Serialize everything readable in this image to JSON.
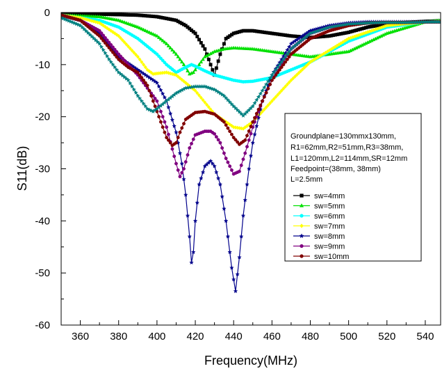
{
  "chart_data": {
    "type": "line",
    "title": "",
    "xlabel": "Frequency(MHz)",
    "ylabel": "S11(dB)",
    "xlim": [
      350,
      548
    ],
    "ylim": [
      -60,
      0
    ],
    "xticks": [
      360,
      380,
      400,
      420,
      440,
      460,
      480,
      500,
      520,
      540
    ],
    "yticks": [
      0,
      -10,
      -20,
      -30,
      -40,
      -50,
      -60
    ],
    "grid": false,
    "legend_position": "right",
    "info_box": [
      "Groundplane=130mmx130mm,",
      "R1=62mm,R2=51mm,R3=38mm,",
      "L1=120mm,L2=114mm,SR=12mm",
      "Feedpoint=(38mm, 38mm)",
      "L=2.5mm"
    ],
    "series": [
      {
        "name": "sw=4mm",
        "color": "#000000",
        "marker": "square",
        "x": [
          350,
          370,
          390,
          400,
          410,
          415,
          420,
          425,
          428,
          430,
          433,
          436,
          440,
          445,
          450,
          460,
          470,
          480,
          490,
          500,
          510,
          520,
          530,
          540,
          548
        ],
        "y": [
          -0.3,
          -0.3,
          -0.5,
          -0.8,
          -1.5,
          -2.5,
          -4,
          -7,
          -10,
          -12,
          -8,
          -5,
          -4,
          -3.5,
          -3.5,
          -4,
          -4.5,
          -4.8,
          -4.5,
          -3.8,
          -2.8,
          -2.2,
          -1.9,
          -1.7,
          -1.6
        ]
      },
      {
        "name": "sw=5mm",
        "color": "#00e000",
        "marker": "triangle-up",
        "x": [
          350,
          370,
          380,
          390,
          400,
          405,
          410,
          414,
          417,
          419,
          422,
          425,
          430,
          435,
          440,
          450,
          460,
          480,
          500,
          520,
          540,
          548
        ],
        "y": [
          -0.5,
          -0.8,
          -1.5,
          -2.8,
          -4.5,
          -6,
          -8,
          -10,
          -11.8,
          -11.5,
          -10,
          -8.5,
          -7.5,
          -7,
          -6.8,
          -7,
          -7.5,
          -8.5,
          -7.5,
          -4,
          -1.8,
          -1.5
        ]
      },
      {
        "name": "sw=6mm",
        "color": "#00ffff",
        "marker": "circle",
        "x": [
          350,
          370,
          380,
          390,
          400,
          405,
          410,
          415,
          418,
          420,
          425,
          430,
          440,
          445,
          450,
          460,
          480,
          500,
          520,
          540,
          548
        ],
        "y": [
          -0.5,
          -1.5,
          -2.8,
          -5,
          -8,
          -10,
          -11.5,
          -10.5,
          -10,
          -10.3,
          -11.2,
          -12,
          -13,
          -13.3,
          -13.2,
          -12.5,
          -9.5,
          -5.5,
          -2.8,
          -1.8,
          -1.7
        ]
      },
      {
        "name": "sw=7mm",
        "color": "#ffff00",
        "marker": "diamond",
        "x": [
          350,
          360,
          370,
          380,
          390,
          395,
          398,
          400,
          405,
          410,
          420,
          430,
          440,
          445,
          450,
          460,
          470,
          480,
          500,
          520,
          540,
          548
        ],
        "y": [
          -0.5,
          -1,
          -2,
          -4.5,
          -8.5,
          -11,
          -11.8,
          -11.7,
          -11.5,
          -12,
          -15,
          -19.5,
          -22,
          -22.3,
          -21,
          -17,
          -13,
          -9.5,
          -5,
          -2.5,
          -1.8,
          -1.7
        ]
      },
      {
        "name": "sw=8mm",
        "color": "#00008b",
        "marker": "star",
        "x": [
          350,
          360,
          370,
          380,
          390,
          400,
          405,
          410,
          413,
          415,
          417,
          418,
          419,
          420,
          422,
          425,
          428,
          430,
          433,
          436,
          439,
          441,
          443,
          445,
          448,
          450,
          455,
          460,
          470,
          480,
          490,
          500,
          510,
          520,
          530,
          540,
          548
        ],
        "y": [
          -0.5,
          -1.5,
          -4,
          -8.5,
          -11,
          -13.5,
          -17,
          -23,
          -29,
          -35,
          -43,
          -48,
          -46,
          -40,
          -33,
          -29.5,
          -28.5,
          -29.5,
          -33,
          -40,
          -49,
          -53.5,
          -47,
          -39,
          -30,
          -25,
          -17,
          -12,
          -6,
          -3.5,
          -2.5,
          -2,
          -1.8,
          -1.8,
          -1.8,
          -1.8,
          -1.8
        ]
      },
      {
        "name": "sw=9mm",
        "color": "#800080",
        "marker": "circle",
        "x": [
          350,
          360,
          370,
          380,
          390,
          400,
          405,
          410,
          412,
          414,
          417,
          420,
          425,
          428,
          430,
          433,
          436,
          440,
          443,
          446,
          450,
          455,
          460,
          470,
          480,
          490,
          500,
          510,
          520,
          530,
          540,
          548
        ],
        "y": [
          -0.5,
          -1.5,
          -3.5,
          -8,
          -12,
          -17,
          -22,
          -29,
          -31.5,
          -30,
          -26,
          -23.5,
          -22.8,
          -22.8,
          -23.3,
          -25,
          -28,
          -31,
          -30.5,
          -27,
          -22,
          -17,
          -13,
          -7,
          -4,
          -2.8,
          -2.2,
          -2,
          -1.9,
          -1.9,
          -1.8,
          -1.8
        ]
      },
      {
        "name": "sw=10mm",
        "color": "#800000",
        "marker": "circle",
        "x": [
          350,
          360,
          370,
          380,
          385,
          390,
          395,
          400,
          405,
          408,
          410,
          412,
          415,
          420,
          425,
          430,
          435,
          440,
          443,
          446,
          450,
          460,
          470,
          480,
          490,
          500,
          510,
          520,
          530,
          540,
          548
        ],
        "y": [
          -0.5,
          -1.5,
          -4.5,
          -9,
          -10.5,
          -11.5,
          -14,
          -19,
          -24,
          -25.5,
          -25,
          -23,
          -20.5,
          -19.2,
          -19,
          -19.5,
          -21,
          -24,
          -25.3,
          -24.5,
          -21,
          -13,
          -8,
          -5,
          -3.5,
          -2.5,
          -2,
          -1.9,
          -1.9,
          -1.8,
          -1.8
        ]
      },
      {
        "name": "",
        "color": "#008080",
        "marker": "star",
        "x": [
          350,
          360,
          370,
          375,
          380,
          385,
          390,
          395,
          398,
          400,
          405,
          410,
          415,
          420,
          425,
          430,
          435,
          440,
          445,
          450,
          455,
          460,
          470,
          480,
          490,
          500,
          510,
          520,
          530,
          540,
          548
        ],
        "y": [
          -1,
          -2.5,
          -6,
          -9,
          -11.5,
          -13,
          -16,
          -18.5,
          -19,
          -18.5,
          -17,
          -15.5,
          -14.5,
          -14.2,
          -14.2,
          -14.8,
          -16,
          -18,
          -19.8,
          -18,
          -15,
          -12,
          -7,
          -4,
          -2.8,
          -2.2,
          -2,
          -1.9,
          -1.9,
          -1.8,
          -1.8
        ]
      }
    ]
  }
}
